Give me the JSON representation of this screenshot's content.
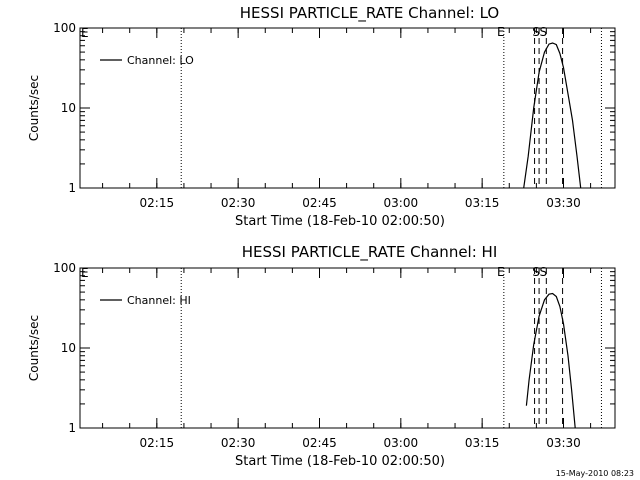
{
  "footer": {
    "timestamp": "15-May-2010 08:23"
  },
  "chart_data": [
    {
      "type": "line",
      "title": "HESSI PARTICLE_RATE Channel: LO",
      "xlabel": "Start Time (18-Feb-10 02:00:50)",
      "ylabel": "Counts/sec",
      "yscale": "log",
      "ylim": [
        1,
        100
      ],
      "xlim": [
        "02:00:50",
        "03:39:30"
      ],
      "x_ticks": [
        "02:15",
        "02:30",
        "02:45",
        "03:00",
        "03:15",
        "03:30"
      ],
      "y_ticks": [
        "1",
        "10",
        "100"
      ],
      "legend": {
        "position": "top-left",
        "entries": [
          "Channel: LO"
        ]
      },
      "series": [
        {
          "name": "Channel: LO",
          "x": [
            "03:22:40",
            "03:23:30",
            "03:24:30",
            "03:25:30",
            "03:26:30",
            "03:27:20",
            "03:28:00",
            "03:28:40",
            "03:29:20",
            "03:30:00",
            "03:30:50",
            "03:31:40",
            "03:32:30",
            "03:33:10"
          ],
          "y": [
            1,
            2.5,
            10,
            28,
            50,
            63,
            65,
            62,
            48,
            32,
            15,
            7,
            2.5,
            1
          ]
        }
      ],
      "vlines": [
        {
          "x": "02:19:30",
          "style": "dotted"
        },
        {
          "x": "03:19:00",
          "style": "dotted",
          "label": "E"
        },
        {
          "x": "03:24:40",
          "style": "dashed"
        },
        {
          "x": "03:25:30",
          "style": "dashed",
          "label": "S"
        },
        {
          "x": "03:26:50",
          "style": "dashed",
          "label": "S"
        },
        {
          "x": "03:29:50",
          "style": "dashed"
        },
        {
          "x": "03:37:00",
          "style": "dotted"
        }
      ],
      "corner_labels": [
        "E"
      ]
    },
    {
      "type": "line",
      "title": "HESSI PARTICLE_RATE Channel: HI",
      "xlabel": "Start Time (18-Feb-10 02:00:50)",
      "ylabel": "Counts/sec",
      "yscale": "log",
      "ylim": [
        1,
        100
      ],
      "xlim": [
        "02:00:50",
        "03:39:30"
      ],
      "x_ticks": [
        "02:15",
        "02:30",
        "02:45",
        "03:00",
        "03:15",
        "03:30"
      ],
      "y_ticks": [
        "1",
        "10",
        "100"
      ],
      "legend": {
        "position": "top-left",
        "entries": [
          "Channel: HI"
        ]
      },
      "series": [
        {
          "name": "Channel: HI",
          "x": [
            "03:23:10",
            "03:23:40",
            "03:24:30",
            "03:25:30",
            "03:26:30",
            "03:27:20",
            "03:28:00",
            "03:28:40",
            "03:29:20",
            "03:30:00",
            "03:30:50",
            "03:31:30",
            "03:32:10"
          ],
          "y": [
            1.9,
            4,
            11,
            25,
            40,
            47,
            48,
            44,
            33,
            20,
            8,
            3,
            1
          ]
        }
      ],
      "vlines": [
        {
          "x": "02:19:30",
          "style": "dotted"
        },
        {
          "x": "03:19:00",
          "style": "dotted",
          "label": "E"
        },
        {
          "x": "03:24:40",
          "style": "dashed"
        },
        {
          "x": "03:25:30",
          "style": "dashed",
          "label": "S"
        },
        {
          "x": "03:26:50",
          "style": "dashed",
          "label": "S"
        },
        {
          "x": "03:29:50",
          "style": "dashed"
        },
        {
          "x": "03:37:00",
          "style": "dotted"
        }
      ],
      "corner_labels": [
        "E"
      ]
    }
  ]
}
